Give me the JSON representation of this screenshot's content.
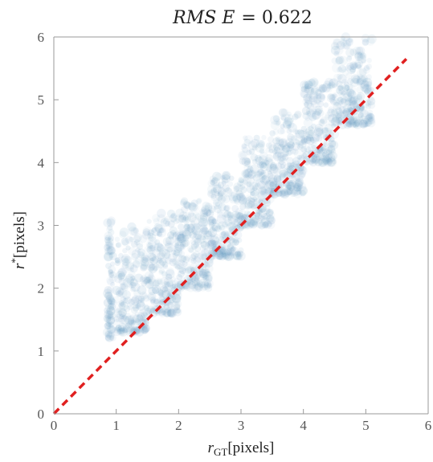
{
  "chart_data": {
    "type": "scatter",
    "title": "RMSE = 0.622",
    "title_parts": {
      "var": "RMS E",
      "eq": "= 0.622"
    },
    "xlabel": "r_GT[pixels]",
    "xlabel_parts": {
      "main": "r",
      "sub": "GT",
      "unit": "[pixels]"
    },
    "ylabel": "r*[pixels]",
    "ylabel_parts": {
      "main": "r",
      "sup": "*",
      "unit": "[pixels]"
    },
    "xlim": [
      0,
      6
    ],
    "ylim": [
      0,
      6
    ],
    "xticks": [
      "0",
      "1",
      "2",
      "3",
      "4",
      "5",
      "6"
    ],
    "yticks": [
      "0",
      "1",
      "2",
      "3",
      "4",
      "5",
      "6"
    ],
    "grid": false,
    "point_color": "#6a9ec4",
    "reference_line": {
      "label": "y = x",
      "color": "#e02020",
      "style": "dashed",
      "x": [
        0,
        5.65
      ],
      "y": [
        0,
        5.65
      ]
    },
    "density_bands": [
      {
        "x": [
          0.85,
          0.95
        ],
        "y": [
          1.2,
          3.1
        ]
      },
      {
        "x": [
          1.0,
          1.5
        ],
        "y": [
          1.3,
          3.0
        ]
      },
      {
        "x": [
          1.5,
          2.0
        ],
        "y": [
          1.6,
          3.2
        ]
      },
      {
        "x": [
          2.0,
          2.5
        ],
        "y": [
          2.0,
          3.4
        ]
      },
      {
        "x": [
          2.5,
          3.0
        ],
        "y": [
          2.5,
          3.8
        ]
      },
      {
        "x": [
          3.0,
          3.5
        ],
        "y": [
          3.0,
          4.4
        ]
      },
      {
        "x": [
          3.5,
          4.0
        ],
        "y": [
          3.5,
          4.8
        ]
      },
      {
        "x": [
          4.0,
          4.5
        ],
        "y": [
          4.0,
          5.3
        ]
      },
      {
        "x": [
          4.5,
          5.1
        ],
        "y": [
          4.6,
          6.0
        ]
      }
    ]
  }
}
